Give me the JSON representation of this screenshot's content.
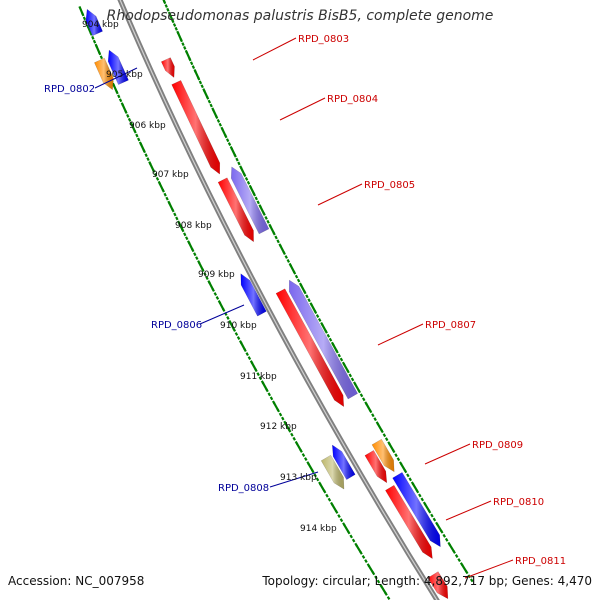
{
  "title": "Rhodopseudomonas palustris BisB5, complete genome",
  "footer": {
    "accession": "Accession: NC_007958",
    "topology": "Topology: circular; Length: 4,892,717 bp; Genes: 4,470"
  },
  "colors": {
    "forward_strand": "#ff0000",
    "reverse_strand": "#0000ff",
    "orange_gene": "#ff8c00",
    "purple_gene": "#7b68ee",
    "olive_gene": "#bdb76b",
    "backbone": "#808080",
    "tick": "#008000",
    "forward_label": "#cc0000",
    "reverse_label": "#000099"
  },
  "ruler": [
    {
      "label": "904 kbp"
    },
    {
      "label": "905 kbp"
    },
    {
      "label": "906 kbp"
    },
    {
      "label": "907 kbp"
    },
    {
      "label": "908 kbp"
    },
    {
      "label": "909 kbp"
    },
    {
      "label": "910 kbp"
    },
    {
      "label": "911 kbp"
    },
    {
      "label": "912 kbp"
    },
    {
      "label": "913 kbp"
    },
    {
      "label": "914 kbp"
    }
  ],
  "gene_labels": [
    {
      "text": "RPD_0803",
      "strand": "forward"
    },
    {
      "text": "RPD_0804",
      "strand": "forward"
    },
    {
      "text": "RPD_0805",
      "strand": "forward"
    },
    {
      "text": "RPD_0807",
      "strand": "forward"
    },
    {
      "text": "RPD_0809",
      "strand": "forward"
    },
    {
      "text": "RPD_0810",
      "strand": "forward"
    },
    {
      "text": "RPD_0811",
      "strand": "forward"
    },
    {
      "text": "RPD_0802",
      "strand": "reverse"
    },
    {
      "text": "RPD_0806",
      "strand": "reverse"
    },
    {
      "text": "RPD_0808",
      "strand": "reverse"
    }
  ]
}
